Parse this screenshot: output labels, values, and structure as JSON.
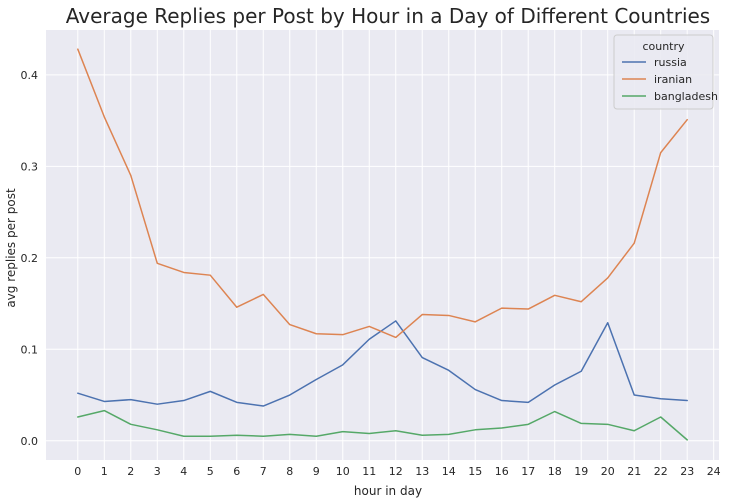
{
  "chart_data": {
    "type": "line",
    "title": "Average Replies per Post by Hour in a Day of Different Countries",
    "xlabel": "hour in day",
    "ylabel": "avg replies per post",
    "x": [
      0,
      1,
      2,
      3,
      4,
      5,
      6,
      7,
      8,
      9,
      10,
      11,
      12,
      13,
      14,
      15,
      16,
      17,
      18,
      19,
      20,
      21,
      22,
      23
    ],
    "x_ticks": [
      "0",
      "1",
      "2",
      "3",
      "4",
      "5",
      "6",
      "7",
      "8",
      "9",
      "10",
      "11",
      "12",
      "13",
      "14",
      "15",
      "16",
      "17",
      "18",
      "19",
      "20",
      "21",
      "22",
      "23",
      "24"
    ],
    "xlim": [
      -1.2,
      24.2
    ],
    "ylim": [
      -0.021,
      0.449
    ],
    "y_ticks": [
      "0.0",
      "0.1",
      "0.2",
      "0.3",
      "0.4"
    ],
    "grid": true,
    "legend": {
      "title": "country",
      "placement": "top-right"
    },
    "series": [
      {
        "name": "russia",
        "color": "#4c72b0",
        "values": [
          0.052,
          0.043,
          0.045,
          0.04,
          0.044,
          0.054,
          0.042,
          0.038,
          0.05,
          0.067,
          0.083,
          0.111,
          0.131,
          0.091,
          0.077,
          0.056,
          0.044,
          0.042,
          0.061,
          0.076,
          0.129,
          0.05,
          0.046,
          0.044
        ]
      },
      {
        "name": "iranian",
        "color": "#dd8452",
        "values": [
          0.428,
          0.354,
          0.29,
          0.194,
          0.184,
          0.181,
          0.146,
          0.16,
          0.127,
          0.117,
          0.116,
          0.125,
          0.113,
          0.138,
          0.137,
          0.13,
          0.145,
          0.144,
          0.159,
          0.152,
          0.178,
          0.216,
          0.315,
          0.351
        ]
      },
      {
        "name": "bangladesh",
        "color": "#55a868",
        "values": [
          0.026,
          0.033,
          0.018,
          0.012,
          0.005,
          0.005,
          0.006,
          0.005,
          0.007,
          0.005,
          0.01,
          0.008,
          0.011,
          0.006,
          0.007,
          0.012,
          0.014,
          0.018,
          0.032,
          0.019,
          0.018,
          0.011,
          0.026,
          0.001
        ]
      }
    ]
  }
}
